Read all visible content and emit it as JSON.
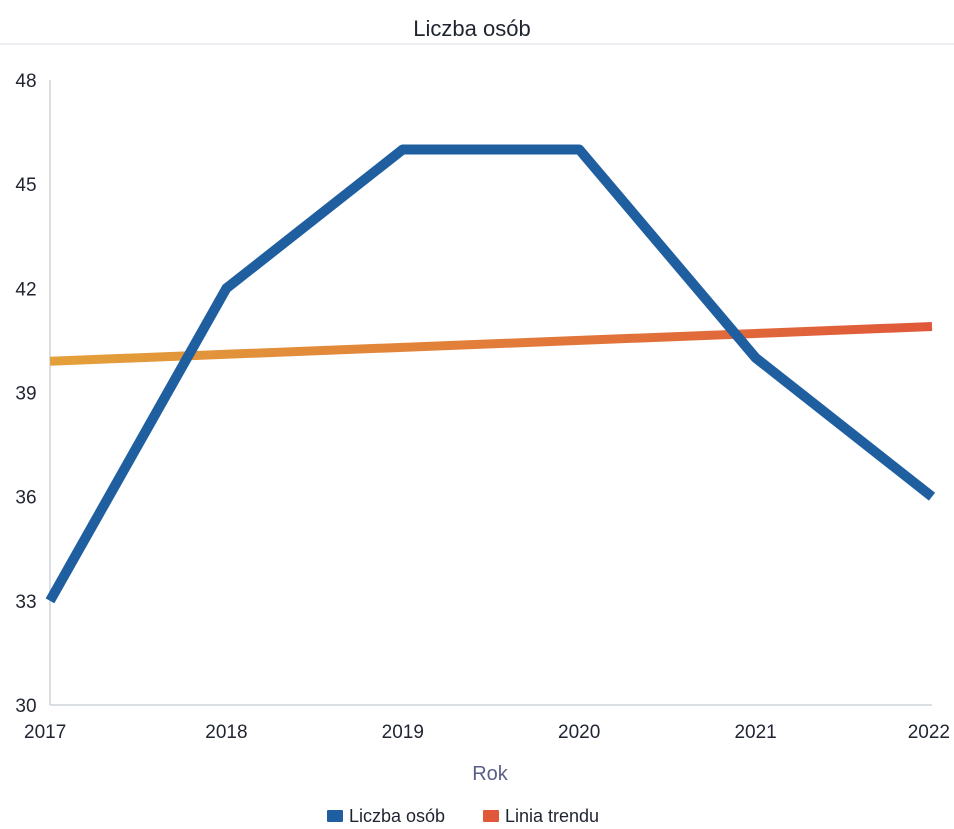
{
  "chart_data": {
    "type": "line",
    "title": "Liczba osób",
    "xlabel": "Rok",
    "ylabel": "",
    "x": [
      "2017",
      "2018",
      "2019",
      "2020",
      "2021",
      "2022"
    ],
    "ylim": [
      30,
      48
    ],
    "yticks": [
      "30",
      "33",
      "36",
      "39",
      "42",
      "45",
      "48"
    ],
    "grid": false,
    "legend_position": "bottom",
    "series": [
      {
        "name": "Liczba osób",
        "values": [
          33,
          42,
          46,
          46,
          40,
          36
        ],
        "color": "#1f5fa0"
      },
      {
        "name": "Linia trendu",
        "values": [
          39.9,
          40.1,
          40.3,
          40.5,
          40.7,
          40.9
        ],
        "color": "#e0583a",
        "color_start": "#e3a13a"
      }
    ]
  }
}
